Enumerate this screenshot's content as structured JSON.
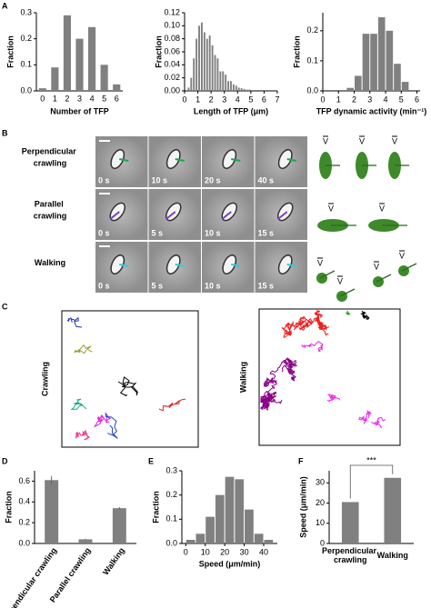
{
  "panel_labels": [
    "A",
    "B",
    "C",
    "D",
    "E",
    "F"
  ],
  "chart_data": [
    {
      "type": "bar",
      "categories": [
        "0",
        "1",
        "2",
        "3",
        "4",
        "5",
        "6"
      ],
      "values": [
        0.01,
        0.09,
        0.29,
        0.2,
        0.245,
        0.1,
        0.025
      ],
      "color": "#808080",
      "xlabel": "Number of TFP",
      "ylabel": "Fraction",
      "ylim": [
        0,
        0.3
      ],
      "yticks": [
        {
          "value": 0,
          "label": "0.0"
        },
        {
          "value": 0.1,
          "label": "0.1"
        },
        {
          "value": 0.2,
          "label": "0.2"
        },
        {
          "value": 0.3,
          "label": "0.3"
        }
      ]
    },
    {
      "type": "histogram",
      "bins": [
        0.2,
        0.4,
        0.6,
        0.8,
        1.0,
        1.2,
        1.4,
        1.6,
        1.8,
        2.0,
        2.2,
        2.4,
        2.6,
        2.8,
        3.0,
        3.2,
        3.4,
        3.6,
        3.8,
        4.0,
        4.2,
        4.4,
        4.6,
        4.8,
        5.0
      ],
      "values": [
        0.005,
        0.02,
        0.05,
        0.08,
        0.1,
        0.105,
        0.09,
        0.08,
        0.085,
        0.07,
        0.055,
        0.05,
        0.03,
        0.03,
        0.025,
        0.015,
        0.015,
        0.01,
        0.008,
        0.005,
        0.004,
        0.003,
        0.002,
        0.002
      ],
      "color": "#808080",
      "xlabel": "Length of TFP (μm)",
      "ylabel": "Fraction",
      "xlim": [
        0,
        7
      ],
      "xticks": [
        0,
        1,
        2,
        3,
        4,
        5,
        6,
        7
      ],
      "ylim": [
        0,
        0.12
      ],
      "yticks": [
        {
          "value": 0,
          "label": "0.00"
        },
        {
          "value": 0.02,
          "label": "0.02"
        },
        {
          "value": 0.04,
          "label": "0.04"
        },
        {
          "value": 0.06,
          "label": "0.06"
        },
        {
          "value": 0.08,
          "label": "0.08"
        },
        {
          "value": 0.1,
          "label": "0.10"
        },
        {
          "value": 0.12,
          "label": "0.12"
        }
      ]
    },
    {
      "type": "histogram",
      "bins": [
        1.5,
        2.0,
        2.5,
        3.0,
        3.5,
        4.0,
        4.5,
        5.0,
        5.5
      ],
      "values": [
        0.01,
        0.05,
        0.19,
        0.19,
        0.245,
        0.2,
        0.09,
        0.03
      ],
      "color": "#808080",
      "xlabel": "TFP dynamic activity (min⁻¹)",
      "ylabel": "Fraction",
      "xlim": [
        0,
        6.2
      ],
      "xticks": [
        0,
        1,
        2,
        3,
        4,
        5,
        6
      ],
      "ylim": [
        0,
        0.26
      ],
      "yticks": [
        {
          "value": 0,
          "label": "0.0"
        },
        {
          "value": 0.1,
          "label": "0.1"
        },
        {
          "value": 0.2,
          "label": "0.2"
        }
      ]
    },
    {
      "type": "bar",
      "categories": [
        "Perpendicular crawling",
        "Parallel crawling",
        "Walking"
      ],
      "values": [
        0.61,
        0.04,
        0.34
      ],
      "errors": [
        0.04,
        0.005,
        0.01
      ],
      "color": "#808080",
      "ylabel": "Fraction",
      "ylim": [
        0,
        0.7
      ],
      "yticks": [
        {
          "value": 0,
          "label": "0.0"
        },
        {
          "value": 0.2,
          "label": "0.2"
        },
        {
          "value": 0.4,
          "label": "0.4"
        },
        {
          "value": 0.6,
          "label": "0.6"
        }
      ]
    },
    {
      "type": "histogram",
      "bins": [
        0,
        5,
        10,
        15,
        20,
        25,
        30,
        35,
        40,
        45
      ],
      "values": [
        0.015,
        0.04,
        0.11,
        0.2,
        0.275,
        0.265,
        0.14,
        0.04,
        0.015
      ],
      "color": "#808080",
      "xlabel": "Speed (μm/min)",
      "ylabel": "Fraction",
      "xlim": [
        -2,
        47
      ],
      "xticks": [
        0,
        10,
        20,
        30,
        40
      ],
      "ylim": [
        0,
        0.3
      ],
      "yticks": [
        {
          "value": 0,
          "label": "0.0"
        },
        {
          "value": 0.1,
          "label": "0.1"
        },
        {
          "value": 0.2,
          "label": "0.2"
        },
        {
          "value": 0.3,
          "label": "0.3"
        }
      ]
    },
    {
      "type": "bar",
      "categories": [
        "Perpendicular crawling",
        "Walking"
      ],
      "values": [
        20.5,
        32.5
      ],
      "color": "#808080",
      "ylabel": "Speed (μm/min)",
      "ylim": [
        0,
        36
      ],
      "yticks": [
        0,
        10,
        20,
        30
      ],
      "annotation": "***"
    }
  ],
  "microscopy": {
    "rows": [
      {
        "label": "Perpendicular crawling",
        "times": [
          "0 s",
          "10 s",
          "20 s",
          "40 s"
        ]
      },
      {
        "label": "Parallel crawling",
        "times": [
          "0 s",
          "5 s",
          "10 s",
          "15 s"
        ]
      },
      {
        "label": "Walking",
        "times": [
          "0 s",
          "5 s",
          "10 s",
          "15 s"
        ]
      }
    ]
  },
  "schematic_labels": [
    [
      "V",
      "V",
      "V"
    ],
    [
      "V",
      "V"
    ],
    [
      "V",
      "V",
      "V",
      "V"
    ]
  ],
  "trajectory_labels": [
    "Crawling",
    "Walking"
  ]
}
